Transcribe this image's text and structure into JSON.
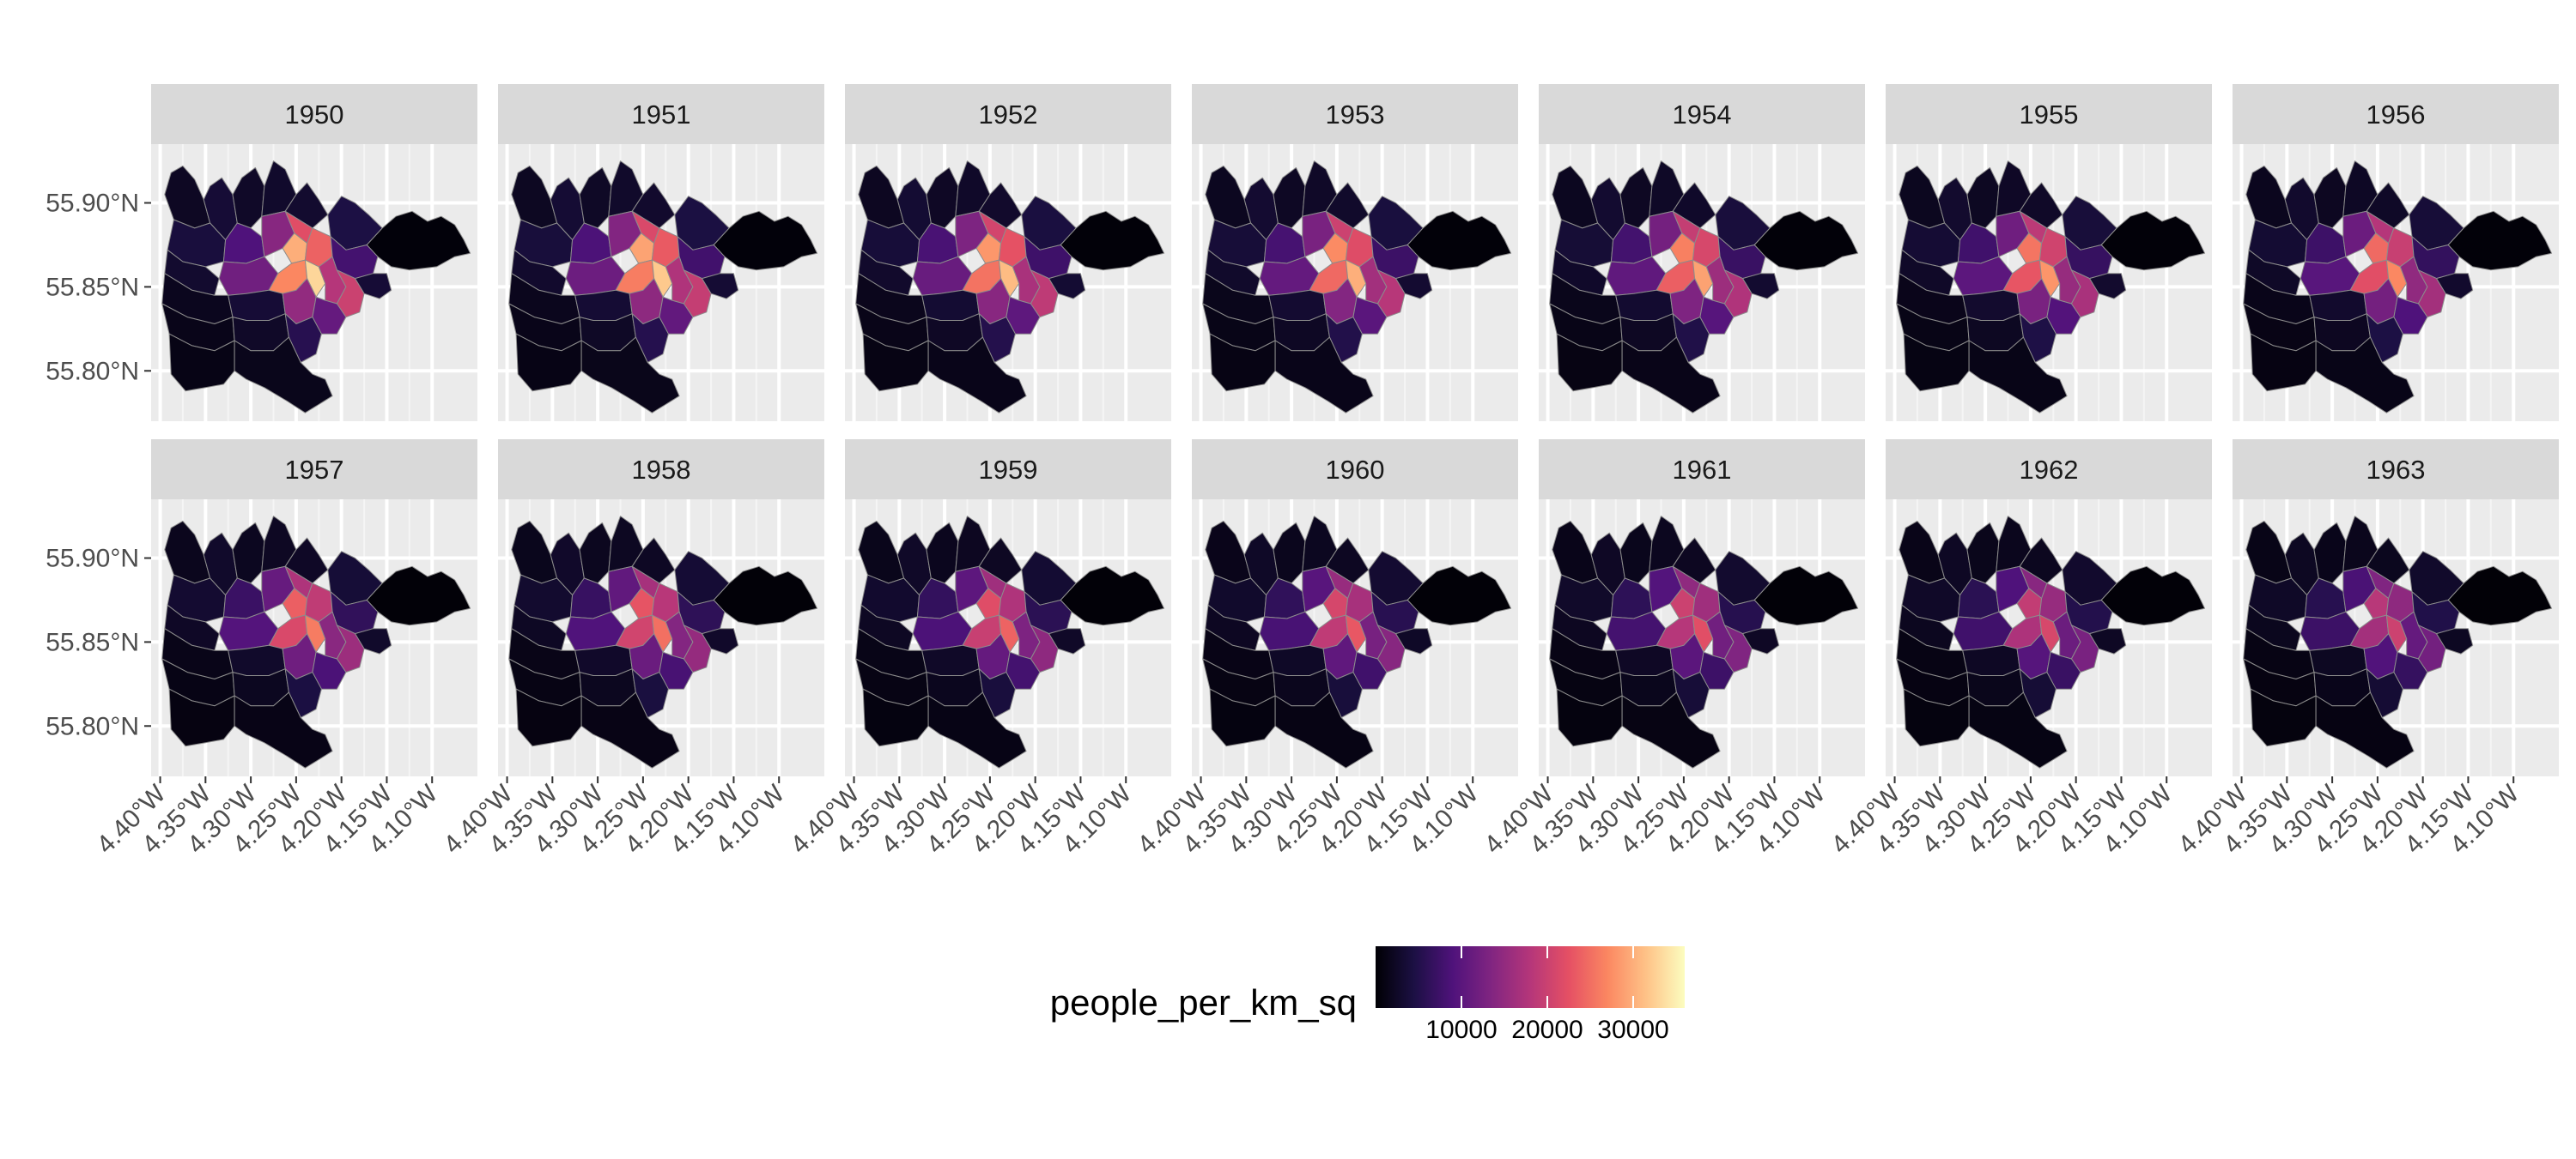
{
  "chart_data": {
    "type": "choropleth-facet",
    "facets": [
      "1950",
      "1951",
      "1952",
      "1953",
      "1954",
      "1955",
      "1956",
      "1957",
      "1958",
      "1959",
      "1960",
      "1961",
      "1962",
      "1963"
    ],
    "y_ticks": [
      {
        "value": 55.9,
        "label": "55.90°N"
      },
      {
        "value": 55.85,
        "label": "55.85°N"
      },
      {
        "value": 55.8,
        "label": "55.80°N"
      }
    ],
    "x_ticks": [
      {
        "value": -4.4,
        "label": "4.40°W"
      },
      {
        "value": -4.35,
        "label": "4.35°W"
      },
      {
        "value": -4.3,
        "label": "4.30°W"
      },
      {
        "value": -4.25,
        "label": "4.25°W"
      },
      {
        "value": -4.2,
        "label": "4.20°W"
      },
      {
        "value": -4.15,
        "label": "4.15°W"
      },
      {
        "value": -4.1,
        "label": "4.10°W"
      }
    ],
    "xlim": [
      -4.41,
      -4.05
    ],
    "ylim": [
      55.77,
      55.935
    ],
    "legend": {
      "title": "people_per_km_sq",
      "position": "bottom",
      "min": 0,
      "max": 36000,
      "ticks": [
        {
          "value": 10000,
          "label": "10000"
        },
        {
          "value": 20000,
          "label": "20000"
        },
        {
          "value": 30000,
          "label": "30000"
        }
      ],
      "colors": [
        "#000004",
        "#1c1044",
        "#4f127b",
        "#812581",
        "#b5367a",
        "#e55064",
        "#fb8761",
        "#fec287",
        "#fcfdbf"
      ]
    },
    "fade_by_year": [
      1.0,
      0.97,
      0.94,
      0.91,
      0.88,
      0.85,
      0.82,
      0.79,
      0.76,
      0.73,
      0.7,
      0.67,
      0.64,
      0.61
    ],
    "zones": [
      {
        "poly": [
          [
            -4.395,
            55.905
          ],
          [
            -4.388,
            55.918
          ],
          [
            -4.375,
            55.922
          ],
          [
            -4.362,
            55.914
          ],
          [
            -4.352,
            55.902
          ],
          [
            -4.345,
            55.888
          ],
          [
            -4.362,
            55.885
          ],
          [
            -4.385,
            55.89
          ]
        ],
        "density": 2200
      },
      {
        "poly": [
          [
            -4.352,
            55.902
          ],
          [
            -4.345,
            55.91
          ],
          [
            -4.332,
            55.915
          ],
          [
            -4.32,
            55.905
          ],
          [
            -4.315,
            55.888
          ],
          [
            -4.328,
            55.878
          ],
          [
            -4.345,
            55.888
          ]
        ],
        "density": 3500
      },
      {
        "poly": [
          [
            -4.32,
            55.905
          ],
          [
            -4.31,
            55.915
          ],
          [
            -4.295,
            55.921
          ],
          [
            -4.285,
            55.91
          ],
          [
            -4.288,
            55.892
          ],
          [
            -4.3,
            55.885
          ],
          [
            -4.315,
            55.888
          ]
        ],
        "density": 2500
      },
      {
        "poly": [
          [
            -4.285,
            55.91
          ],
          [
            -4.275,
            55.925
          ],
          [
            -4.262,
            55.92
          ],
          [
            -4.25,
            55.905
          ],
          [
            -4.262,
            55.895
          ],
          [
            -4.288,
            55.892
          ]
        ],
        "density": 2800
      },
      {
        "poly": [
          [
            -4.25,
            55.905
          ],
          [
            -4.238,
            55.912
          ],
          [
            -4.225,
            55.902
          ],
          [
            -4.215,
            55.893
          ],
          [
            -4.232,
            55.885
          ],
          [
            -4.262,
            55.895
          ]
        ],
        "density": 3000
      },
      {
        "poly": [
          [
            -4.215,
            55.893
          ],
          [
            -4.2,
            55.904
          ],
          [
            -4.185,
            55.9
          ],
          [
            -4.17,
            55.893
          ],
          [
            -4.155,
            55.885
          ],
          [
            -4.172,
            55.875
          ],
          [
            -4.195,
            55.872
          ],
          [
            -4.212,
            55.88
          ]
        ],
        "density": 4500
      },
      {
        "poly": [
          [
            -4.155,
            55.885
          ],
          [
            -4.14,
            55.892
          ],
          [
            -4.122,
            55.895
          ],
          [
            -4.105,
            55.889
          ],
          [
            -4.09,
            55.892
          ],
          [
            -4.075,
            55.887
          ],
          [
            -4.065,
            55.878
          ],
          [
            -4.058,
            55.87
          ],
          [
            -4.075,
            55.868
          ],
          [
            -4.095,
            55.862
          ],
          [
            -4.125,
            55.86
          ],
          [
            -4.145,
            55.862
          ],
          [
            -4.16,
            55.868
          ],
          [
            -4.172,
            55.875
          ]
        ],
        "density": 400
      },
      {
        "poly": [
          [
            -4.385,
            55.89
          ],
          [
            -4.362,
            55.885
          ],
          [
            -4.345,
            55.888
          ],
          [
            -4.328,
            55.878
          ],
          [
            -4.33,
            55.865
          ],
          [
            -4.35,
            55.862
          ],
          [
            -4.375,
            55.865
          ],
          [
            -4.392,
            55.872
          ]
        ],
        "density": 4000
      },
      {
        "poly": [
          [
            -4.315,
            55.888
          ],
          [
            -4.3,
            55.885
          ],
          [
            -4.288,
            55.88
          ],
          [
            -4.285,
            55.868
          ],
          [
            -4.305,
            55.864
          ],
          [
            -4.33,
            55.865
          ],
          [
            -4.328,
            55.878
          ]
        ],
        "density": 9000
      },
      {
        "poly": [
          [
            -4.288,
            55.892
          ],
          [
            -4.262,
            55.895
          ],
          [
            -4.252,
            55.882
          ],
          [
            -4.265,
            55.873
          ],
          [
            -4.285,
            55.868
          ],
          [
            -4.288,
            55.88
          ]
        ],
        "density": 14000
      },
      {
        "poly": [
          [
            -4.262,
            55.895
          ],
          [
            -4.232,
            55.885
          ],
          [
            -4.238,
            55.876
          ],
          [
            -4.252,
            55.882
          ]
        ],
        "density": 22000
      },
      {
        "poly": [
          [
            -4.252,
            55.882
          ],
          [
            -4.238,
            55.876
          ],
          [
            -4.24,
            55.866
          ],
          [
            -4.255,
            55.864
          ],
          [
            -4.265,
            55.873
          ]
        ],
        "density": 30000
      },
      {
        "poly": [
          [
            -4.232,
            55.885
          ],
          [
            -4.212,
            55.88
          ],
          [
            -4.21,
            55.868
          ],
          [
            -4.225,
            55.862
          ],
          [
            -4.24,
            55.866
          ],
          [
            -4.238,
            55.876
          ]
        ],
        "density": 24000
      },
      {
        "poly": [
          [
            -4.212,
            55.88
          ],
          [
            -4.195,
            55.872
          ],
          [
            -4.172,
            55.875
          ],
          [
            -4.16,
            55.868
          ],
          [
            -4.165,
            55.858
          ],
          [
            -4.185,
            55.855
          ],
          [
            -4.205,
            55.86
          ],
          [
            -4.21,
            55.868
          ]
        ],
        "density": 8000
      },
      {
        "poly": [
          [
            -4.165,
            55.858
          ],
          [
            -4.15,
            55.858
          ],
          [
            -4.145,
            55.848
          ],
          [
            -4.158,
            55.843
          ],
          [
            -4.175,
            55.846
          ],
          [
            -4.185,
            55.855
          ]
        ],
        "density": 3500
      },
      {
        "poly": [
          [
            -4.392,
            55.872
          ],
          [
            -4.375,
            55.865
          ],
          [
            -4.35,
            55.862
          ],
          [
            -4.335,
            55.855
          ],
          [
            -4.34,
            55.845
          ],
          [
            -4.365,
            55.848
          ],
          [
            -4.395,
            55.858
          ]
        ],
        "density": 3000
      },
      {
        "poly": [
          [
            -4.335,
            55.855
          ],
          [
            -4.33,
            55.865
          ],
          [
            -4.305,
            55.864
          ],
          [
            -4.285,
            55.868
          ],
          [
            -4.27,
            55.858
          ],
          [
            -4.28,
            55.848
          ],
          [
            -4.305,
            55.846
          ],
          [
            -4.325,
            55.845
          ]
        ],
        "density": 12000
      },
      {
        "poly": [
          [
            -4.27,
            55.858
          ],
          [
            -4.255,
            55.864
          ],
          [
            -4.24,
            55.866
          ],
          [
            -4.238,
            55.855
          ],
          [
            -4.25,
            55.848
          ],
          [
            -4.265,
            55.846
          ],
          [
            -4.28,
            55.848
          ]
        ],
        "density": 27000
      },
      {
        "poly": [
          [
            -4.24,
            55.866
          ],
          [
            -4.225,
            55.862
          ],
          [
            -4.218,
            55.852
          ],
          [
            -4.228,
            55.844
          ],
          [
            -4.238,
            55.855
          ]
        ],
        "density": 33000
      },
      {
        "poly": [
          [
            -4.225,
            55.862
          ],
          [
            -4.21,
            55.868
          ],
          [
            -4.205,
            55.86
          ],
          [
            -4.195,
            55.85
          ],
          [
            -4.205,
            55.84
          ],
          [
            -4.218,
            55.842
          ],
          [
            -4.218,
            55.852
          ]
        ],
        "density": 18000
      },
      {
        "poly": [
          [
            -4.205,
            55.86
          ],
          [
            -4.185,
            55.855
          ],
          [
            -4.175,
            55.846
          ],
          [
            -4.18,
            55.835
          ],
          [
            -4.195,
            55.832
          ],
          [
            -4.205,
            55.84
          ],
          [
            -4.195,
            55.85
          ]
        ],
        "density": 20000
      },
      {
        "poly": [
          [
            -4.395,
            55.858
          ],
          [
            -4.365,
            55.848
          ],
          [
            -4.34,
            55.845
          ],
          [
            -4.325,
            55.845
          ],
          [
            -4.32,
            55.832
          ],
          [
            -4.34,
            55.828
          ],
          [
            -4.37,
            55.832
          ],
          [
            -4.398,
            55.84
          ]
        ],
        "density": 1800
      },
      {
        "poly": [
          [
            -4.325,
            55.845
          ],
          [
            -4.305,
            55.846
          ],
          [
            -4.28,
            55.848
          ],
          [
            -4.265,
            55.846
          ],
          [
            -4.262,
            55.834
          ],
          [
            -4.28,
            55.83
          ],
          [
            -4.305,
            55.83
          ],
          [
            -4.32,
            55.832
          ]
        ],
        "density": 3500
      },
      {
        "poly": [
          [
            -4.265,
            55.846
          ],
          [
            -4.25,
            55.848
          ],
          [
            -4.238,
            55.855
          ],
          [
            -4.228,
            55.844
          ],
          [
            -4.232,
            55.832
          ],
          [
            -4.25,
            55.828
          ],
          [
            -4.262,
            55.834
          ]
        ],
        "density": 15000
      },
      {
        "poly": [
          [
            -4.228,
            55.844
          ],
          [
            -4.218,
            55.842
          ],
          [
            -4.205,
            55.84
          ],
          [
            -4.195,
            55.832
          ],
          [
            -4.205,
            55.822
          ],
          [
            -4.222,
            55.822
          ],
          [
            -4.232,
            55.832
          ]
        ],
        "density": 11000
      },
      {
        "poly": [
          [
            -4.398,
            55.84
          ],
          [
            -4.37,
            55.832
          ],
          [
            -4.34,
            55.828
          ],
          [
            -4.32,
            55.832
          ],
          [
            -4.318,
            55.818
          ],
          [
            -4.34,
            55.812
          ],
          [
            -4.365,
            55.815
          ],
          [
            -4.39,
            55.822
          ]
        ],
        "density": 1500
      },
      {
        "poly": [
          [
            -4.32,
            55.832
          ],
          [
            -4.305,
            55.83
          ],
          [
            -4.28,
            55.83
          ],
          [
            -4.262,
            55.834
          ],
          [
            -4.258,
            55.82
          ],
          [
            -4.275,
            55.812
          ],
          [
            -4.3,
            55.812
          ],
          [
            -4.318,
            55.818
          ]
        ],
        "density": 2500
      },
      {
        "poly": [
          [
            -4.262,
            55.834
          ],
          [
            -4.25,
            55.828
          ],
          [
            -4.232,
            55.832
          ],
          [
            -4.222,
            55.822
          ],
          [
            -4.228,
            55.81
          ],
          [
            -4.245,
            55.805
          ],
          [
            -4.258,
            55.82
          ]
        ],
        "density": 5500
      },
      {
        "poly": [
          [
            -4.39,
            55.822
          ],
          [
            -4.365,
            55.815
          ],
          [
            -4.34,
            55.812
          ],
          [
            -4.318,
            55.818
          ],
          [
            -4.318,
            55.8
          ],
          [
            -4.33,
            55.792
          ],
          [
            -4.35,
            55.79
          ],
          [
            -4.372,
            55.788
          ],
          [
            -4.388,
            55.798
          ]
        ],
        "density": 1200
      },
      {
        "poly": [
          [
            -4.318,
            55.818
          ],
          [
            -4.3,
            55.812
          ],
          [
            -4.275,
            55.812
          ],
          [
            -4.258,
            55.82
          ],
          [
            -4.245,
            55.805
          ],
          [
            -4.232,
            55.798
          ],
          [
            -4.218,
            55.795
          ],
          [
            -4.21,
            55.785
          ],
          [
            -4.225,
            55.78
          ],
          [
            -4.24,
            55.775
          ],
          [
            -4.26,
            55.782
          ],
          [
            -4.285,
            55.79
          ],
          [
            -4.305,
            55.795
          ],
          [
            -4.318,
            55.8
          ]
        ],
        "density": 1600
      }
    ]
  }
}
